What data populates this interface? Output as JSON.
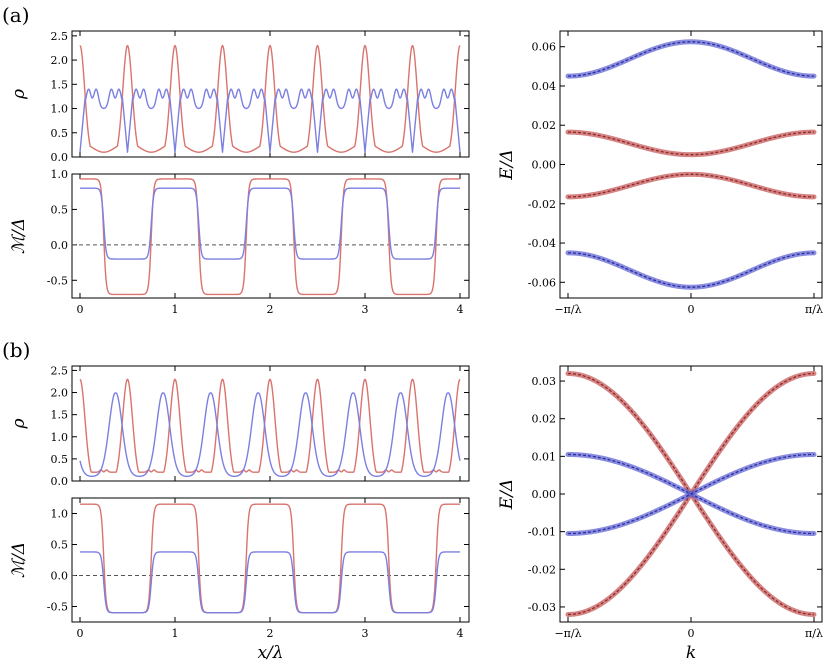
{
  "panel_labels": {
    "a": "(a)",
    "b": "(b)"
  },
  "colors": {
    "red": "#d9736d",
    "blue": "#7b7fe0",
    "band_red": "#c85a5a",
    "band_blue": "#6266d4",
    "band_core_red": "#8b2b2b",
    "band_core_blue": "#2b2f9a"
  },
  "chart_data": [
    {
      "id": "a-rho",
      "type": "line",
      "ylabel": "ρ",
      "xlabel": "",
      "xlim": [
        0,
        4
      ],
      "ylim": [
        0,
        2.6
      ],
      "yticks": [
        "0.0",
        "0.5",
        "1.0",
        "1.5",
        "2.0",
        "2.5"
      ],
      "xticks": [
        "0",
        "1",
        "2",
        "3",
        "4"
      ],
      "series": [
        {
          "color": "red",
          "description_points": "period 0.5, peaks 2.3 at x=0.25+0.5n, minima 0.2"
        },
        {
          "color": "blue",
          "description_points": "period 0.5, double-hump max 1.4, plateau 1.0, minima 0.1"
        }
      ]
    },
    {
      "id": "a-M",
      "type": "line",
      "ylabel": "ℳ/Δ",
      "xlabel": "",
      "xlim": [
        0,
        4
      ],
      "ylim": [
        -0.75,
        1.0
      ],
      "yticks": [
        "-0.5",
        "0.0",
        "0.5",
        "1.0"
      ],
      "xticks": [
        "0",
        "1",
        "2",
        "3",
        "4"
      ],
      "zero_line": true,
      "series": [
        {
          "color": "red",
          "high": 0.93,
          "low": -0.7
        },
        {
          "color": "blue",
          "high": 0.8,
          "low": -0.2
        }
      ]
    },
    {
      "id": "a-E",
      "type": "line",
      "ylabel": "E/Δ",
      "xlabel": "",
      "xlim": [
        -3.1416,
        3.1416
      ],
      "ylim": [
        -0.068,
        0.068
      ],
      "yticks": [
        "0.06",
        "0.04",
        "0.02",
        "0.00",
        "-0.02",
        "-0.04",
        "-0.06"
      ],
      "xticks": [
        "−π/λ",
        "0",
        "π/λ"
      ],
      "series": [
        {
          "color": "blue",
          "edge": 0.045,
          "center": 0.0625
        },
        {
          "color": "red",
          "edge": 0.0165,
          "center": 0.005
        },
        {
          "color": "red",
          "edge": -0.0165,
          "center": -0.005
        },
        {
          "color": "blue",
          "edge": -0.045,
          "center": -0.0625
        }
      ]
    },
    {
      "id": "b-rho",
      "type": "line",
      "ylabel": "ρ",
      "xlabel": "",
      "xlim": [
        0,
        4
      ],
      "ylim": [
        0,
        2.6
      ],
      "yticks": [
        "0.0",
        "0.5",
        "1.0",
        "1.5",
        "2.0",
        "2.5"
      ],
      "xticks": [
        "0",
        "1",
        "2",
        "3",
        "4"
      ],
      "series": [
        {
          "color": "red",
          "description_points": "period 0.5, peaks 2.3, small bumps 0.25 between"
        },
        {
          "color": "blue",
          "description_points": "period 0.5, peaks 1.85, minima 0.1"
        }
      ]
    },
    {
      "id": "b-M",
      "type": "line",
      "ylabel": "ℳ/Δ",
      "xlabel": "x/λ",
      "xlim": [
        0,
        4
      ],
      "ylim": [
        -0.75,
        1.25
      ],
      "yticks": [
        "-0.5",
        "0.0",
        "0.5",
        "1.0"
      ],
      "xticks": [
        "0",
        "1",
        "2",
        "3",
        "4"
      ],
      "zero_line": true,
      "series": [
        {
          "color": "red",
          "high": 1.15,
          "low": -0.6
        },
        {
          "color": "blue",
          "high": 0.38,
          "low": -0.6
        }
      ]
    },
    {
      "id": "b-E",
      "type": "line",
      "ylabel": "E/Δ",
      "xlabel": "k",
      "xlim": [
        -3.1416,
        3.1416
      ],
      "ylim": [
        -0.034,
        0.034
      ],
      "yticks": [
        "0.03",
        "0.02",
        "0.01",
        "0.00",
        "-0.01",
        "-0.02",
        "-0.03"
      ],
      "xticks": [
        "−π/λ",
        "0",
        "π/λ"
      ],
      "series": [
        {
          "color": "red",
          "amplitude": 0.032,
          "sign": -1
        },
        {
          "color": "red",
          "amplitude": 0.032,
          "sign": 1
        },
        {
          "color": "blue",
          "amplitude": 0.0105,
          "sign": -1
        },
        {
          "color": "blue",
          "amplitude": 0.0105,
          "sign": 1
        }
      ]
    }
  ]
}
